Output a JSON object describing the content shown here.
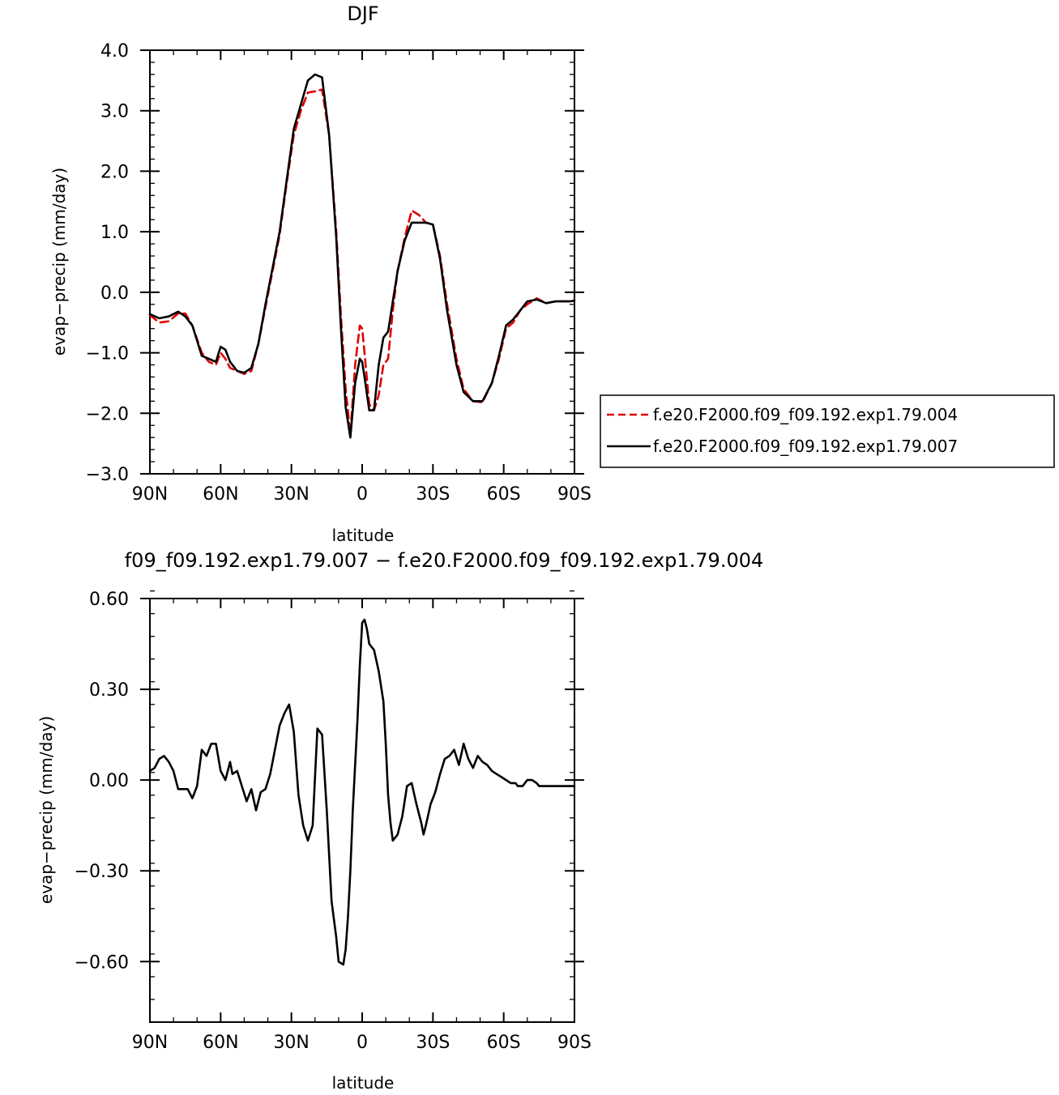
{
  "chart_data": [
    {
      "type": "line",
      "title": "DJF",
      "xlabel": "latitude",
      "ylabel": "evap−precip (mm/day)",
      "xlim": [
        90,
        -90
      ],
      "ylim": [
        -3.0,
        4.0
      ],
      "xticks": [
        90,
        60,
        30,
        0,
        -30,
        -60,
        -90
      ],
      "xtick_labels": [
        "90N",
        "60N",
        "30N",
        "0",
        "30S",
        "60S",
        "90S"
      ],
      "yticks": [
        4.0,
        3.0,
        2.0,
        1.0,
        0.0,
        -1.0,
        -2.0,
        -3.0
      ],
      "ytick_labels": [
        "4.0",
        "3.0",
        "2.0",
        "1.0",
        "0.0",
        "−1.0",
        "−2.0",
        "−3.0"
      ],
      "legend_position": "right",
      "series": [
        {
          "name": "f.e20.F2000.f09_f09.192.exp1.79.004",
          "color": "#e00000",
          "dash": "dashed",
          "x": [
            90,
            86,
            82,
            78,
            75,
            72,
            68,
            65,
            62,
            60,
            58,
            56,
            53,
            50,
            47,
            44,
            41,
            38,
            35,
            32,
            29,
            26,
            23,
            20,
            17,
            14,
            11,
            9,
            7,
            5,
            3,
            1,
            0,
            -1,
            -3,
            -5,
            -7,
            -9,
            -11,
            -13,
            -15,
            -18,
            -21,
            -24,
            -27,
            -30,
            -33,
            -36,
            -40,
            -43,
            -47,
            -51,
            -55,
            -58,
            -61,
            -64,
            -67,
            -70,
            -74,
            -78,
            -82,
            -85,
            -88,
            -90
          ],
          "y": [
            -0.38,
            -0.5,
            -0.48,
            -0.35,
            -0.35,
            -0.55,
            -1.0,
            -1.15,
            -1.2,
            -1.0,
            -1.1,
            -1.25,
            -1.3,
            -1.35,
            -1.3,
            -0.85,
            -0.25,
            0.35,
            0.95,
            1.8,
            2.6,
            3.0,
            3.3,
            3.32,
            3.35,
            2.6,
            1.0,
            -0.4,
            -1.6,
            -2.35,
            -1.2,
            -0.55,
            -0.6,
            -1.0,
            -1.85,
            -1.95,
            -1.7,
            -1.2,
            -1.1,
            -0.3,
            0.35,
            0.9,
            1.35,
            1.28,
            1.15,
            1.12,
            0.6,
            -0.2,
            -1.1,
            -1.6,
            -1.8,
            -1.82,
            -1.5,
            -1.1,
            -0.6,
            -0.5,
            -0.3,
            -0.2,
            -0.1,
            -0.18,
            -0.15,
            -0.15,
            -0.15,
            -0.14
          ]
        },
        {
          "name": "f.e20.F2000.f09_f09.192.exp1.79.007",
          "color": "#000000",
          "dash": "solid",
          "x": [
            90,
            86,
            82,
            78,
            75,
            72,
            68,
            65,
            62,
            60,
            58,
            56,
            53,
            50,
            47,
            44,
            41,
            38,
            35,
            32,
            29,
            26,
            23,
            20,
            17,
            14,
            11,
            9,
            7,
            5,
            3,
            1,
            0,
            -1,
            -3,
            -5,
            -7,
            -9,
            -11,
            -13,
            -15,
            -18,
            -21,
            -24,
            -27,
            -30,
            -33,
            -36,
            -40,
            -43,
            -47,
            -51,
            -55,
            -58,
            -61,
            -64,
            -67,
            -70,
            -74,
            -78,
            -82,
            -85,
            -88,
            -90
          ],
          "y": [
            -0.36,
            -0.43,
            -0.4,
            -0.32,
            -0.4,
            -0.55,
            -1.05,
            -1.1,
            -1.15,
            -0.9,
            -0.95,
            -1.15,
            -1.3,
            -1.33,
            -1.25,
            -0.85,
            -0.2,
            0.4,
            1.0,
            1.85,
            2.7,
            3.1,
            3.5,
            3.6,
            3.55,
            2.6,
            0.9,
            -0.6,
            -1.9,
            -2.4,
            -1.5,
            -1.1,
            -1.15,
            -1.4,
            -1.95,
            -1.95,
            -1.2,
            -0.75,
            -0.65,
            -0.15,
            0.35,
            0.85,
            1.15,
            1.15,
            1.15,
            1.12,
            0.55,
            -0.3,
            -1.2,
            -1.65,
            -1.8,
            -1.8,
            -1.5,
            -1.05,
            -0.55,
            -0.45,
            -0.3,
            -0.15,
            -0.12,
            -0.18,
            -0.15,
            -0.15,
            -0.15,
            -0.14
          ]
        }
      ]
    },
    {
      "type": "line",
      "title": "f09_f09.192.exp1.79.007 − f.e20.F2000.f09_f09.192.exp1.79.004",
      "xlabel": "latitude",
      "ylabel": "evap−precip (mm/day)",
      "xlim": [
        90,
        -90
      ],
      "ylim": [
        -0.8,
        0.6
      ],
      "xticks": [
        90,
        60,
        30,
        0,
        -30,
        -60,
        -90
      ],
      "xtick_labels": [
        "90N",
        "60N",
        "30N",
        "0",
        "30S",
        "60S",
        "90S"
      ],
      "yticks": [
        0.6,
        0.3,
        0.0,
        -0.3,
        -0.6
      ],
      "ytick_labels": [
        "0.60",
        "0.30",
        "0.00",
        "−0.30",
        "−0.60"
      ],
      "series": [
        {
          "color": "#000000",
          "dash": "solid",
          "x": [
            90,
            88,
            86,
            84,
            82,
            80,
            78,
            76,
            74,
            72,
            70,
            68,
            66,
            64,
            62,
            60,
            58,
            56,
            55,
            53,
            51,
            49,
            47,
            45,
            43,
            41,
            39,
            37,
            35,
            33,
            31,
            29,
            27,
            25,
            23,
            21,
            19,
            17,
            15,
            13,
            11,
            10,
            8,
            7,
            6,
            5,
            4,
            3,
            2,
            1,
            0,
            -1,
            -2,
            -3,
            -5,
            -7,
            -9,
            -10,
            -11,
            -12,
            -13,
            -15,
            -17,
            -19,
            -21,
            -23,
            -25,
            -26,
            -27,
            -29,
            -31,
            -33,
            -35,
            -37,
            -39,
            -41,
            -43,
            -45,
            -47,
            -49,
            -51,
            -53,
            -55,
            -57,
            -59,
            -61,
            -63,
            -65,
            -66,
            -67,
            -68,
            -70,
            -72,
            -74,
            -75,
            -76,
            -78,
            -80,
            -82,
            -84,
            -86,
            -88,
            -90
          ],
          "y": [
            0.03,
            0.04,
            0.07,
            0.08,
            0.06,
            0.03,
            -0.03,
            -0.03,
            -0.03,
            -0.06,
            -0.02,
            0.1,
            0.08,
            0.12,
            0.12,
            0.03,
            0.0,
            0.06,
            0.02,
            0.03,
            -0.02,
            -0.07,
            -0.03,
            -0.1,
            -0.04,
            -0.03,
            0.02,
            0.1,
            0.18,
            0.22,
            0.25,
            0.16,
            -0.05,
            -0.15,
            -0.2,
            -0.15,
            0.17,
            0.15,
            -0.1,
            -0.4,
            -0.52,
            -0.6,
            -0.61,
            -0.56,
            -0.45,
            -0.3,
            -0.1,
            0.05,
            0.2,
            0.38,
            0.52,
            0.53,
            0.5,
            0.45,
            0.43,
            0.36,
            0.26,
            0.12,
            -0.05,
            -0.14,
            -0.2,
            -0.18,
            -0.12,
            -0.02,
            -0.01,
            -0.08,
            -0.14,
            -0.18,
            -0.15,
            -0.08,
            -0.04,
            0.02,
            0.07,
            0.08,
            0.1,
            0.05,
            0.12,
            0.07,
            0.04,
            0.08,
            0.06,
            0.05,
            0.03,
            0.02,
            0.01,
            0.0,
            -0.01,
            -0.01,
            -0.02,
            -0.02,
            -0.02,
            0.0,
            0.0,
            -0.01,
            -0.02,
            -0.02,
            -0.02,
            -0.02,
            -0.02,
            -0.02,
            -0.02,
            -0.02,
            -0.02
          ],
          "y_dummy": null
        }
      ]
    }
  ]
}
